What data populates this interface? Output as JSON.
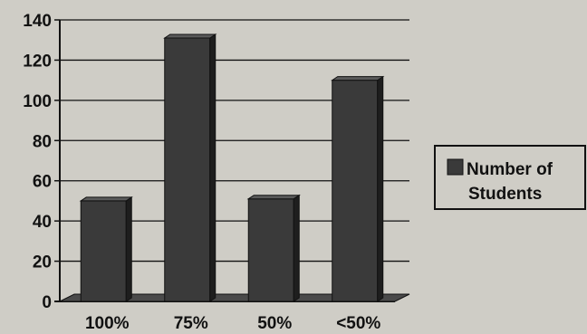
{
  "chart_data": {
    "type": "bar",
    "categories": [
      "100%",
      "75%",
      "50%",
      "<50%"
    ],
    "series": [
      {
        "name": "Number of Students",
        "values": [
          50,
          131,
          51,
          110
        ]
      }
    ],
    "ylim": [
      0,
      140
    ],
    "yticks": [
      0,
      20,
      40,
      60,
      80,
      100,
      120,
      140
    ],
    "grid": true,
    "legend_position": "right",
    "legend_lines": [
      "Number of",
      "Students"
    ],
    "colors": {
      "bar": "#3a3a3a",
      "bar_side": "#1e1e1e",
      "bar_top": "#5a5a5a",
      "floor": "#4a4a4a",
      "grid": "#111111",
      "background": "#cfcdc6"
    }
  }
}
